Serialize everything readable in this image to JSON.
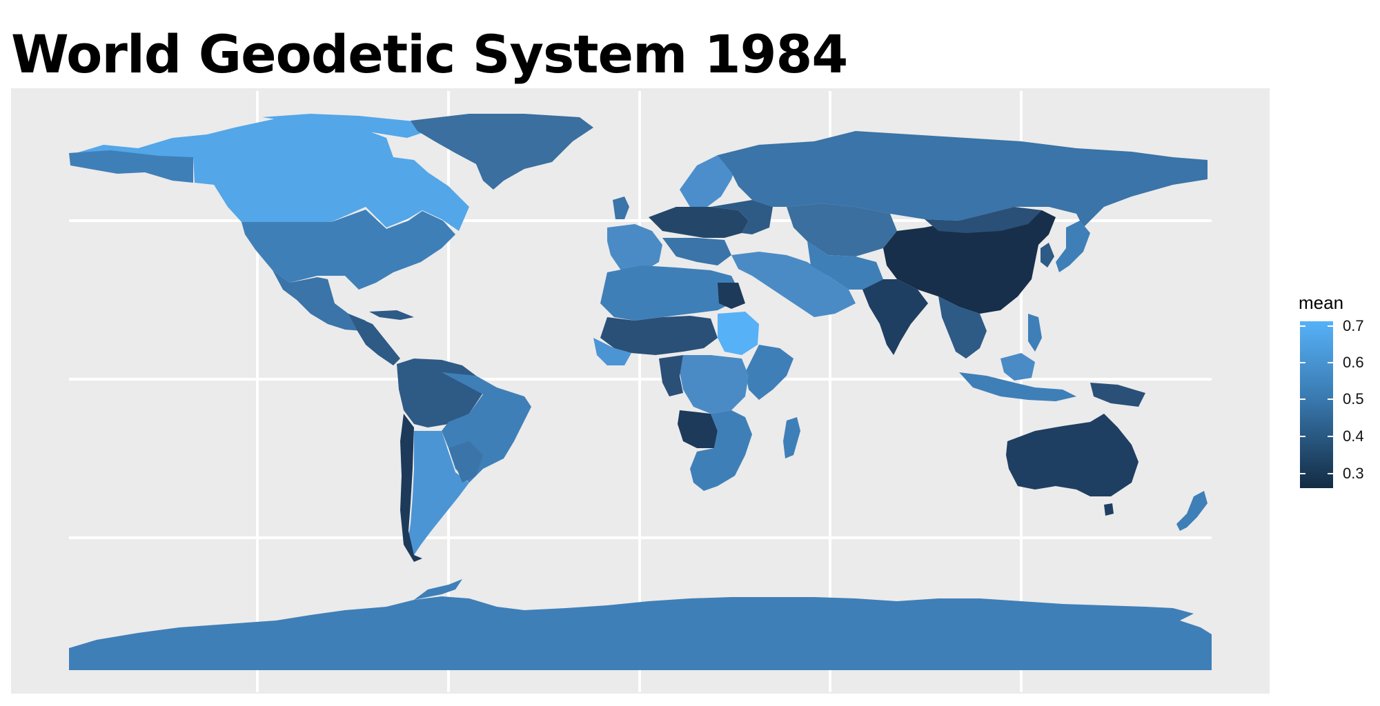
{
  "title": "World Geodetic System 1984",
  "legend": {
    "title": "mean",
    "ticks": [
      "0.7",
      "0.6",
      "0.5",
      "0.4",
      "0.3"
    ],
    "tick_values": [
      0.7,
      0.6,
      0.5,
      0.4,
      0.3
    ],
    "range": [
      0.26,
      0.72
    ],
    "color_low": "#132b43",
    "color_high": "#56b1f7"
  },
  "map": {
    "projection": "equirectangular (WGS84)",
    "background": "#ebebeb",
    "gridline_color": "#ffffff",
    "fill_variable": "mean",
    "region_means": {
      "north_america_canada": 0.7,
      "usa": 0.55,
      "mexico_central_america": 0.5,
      "south_america_north": 0.45,
      "brazil": 0.55,
      "south_america_south": 0.65,
      "chile_andes": 0.3,
      "greenland": 0.5,
      "europe_west": 0.55,
      "europe_central": 0.35,
      "scandinavia": 0.6,
      "russia": 0.55,
      "central_asia": 0.5,
      "middle_east": 0.6,
      "north_africa": 0.55,
      "sahel": 0.4,
      "sudan": 0.7,
      "east_africa": 0.55,
      "central_africa": 0.45,
      "southern_africa": 0.5,
      "china": 0.3,
      "india": 0.35,
      "southeast_asia": 0.45,
      "japan": 0.55,
      "indonesia": 0.55,
      "australia": 0.37,
      "new_zealand": 0.55,
      "antarctica": 0.55
    }
  }
}
